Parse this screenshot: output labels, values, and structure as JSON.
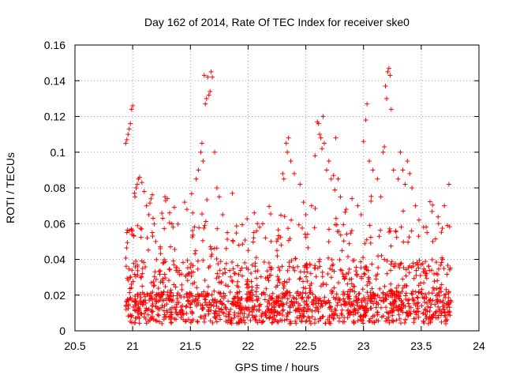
{
  "chart_data": {
    "type": "scatter",
    "title": "Day 162 of 2014, Rate Of TEC Index for receiver ske0",
    "xlabel": "GPS time / hours",
    "ylabel": "ROTI / TECUs",
    "xlim": [
      20.5,
      24
    ],
    "ylim": [
      0,
      0.16
    ],
    "xticks": [
      20.5,
      21,
      21.5,
      22,
      22.5,
      23,
      23.5,
      24
    ],
    "xtick_labels": [
      "20.5",
      "21",
      "21.5",
      "22",
      "22.5",
      "23",
      "23.5",
      "24"
    ],
    "yticks": [
      0,
      0.02,
      0.04,
      0.06,
      0.08,
      0.1,
      0.12,
      0.14,
      0.16
    ],
    "ytick_labels": [
      "0",
      "0.02",
      "0.04",
      "0.06",
      "0.08",
      "0.1",
      "0.12",
      "0.14",
      "0.16"
    ],
    "grid": true,
    "marker": "plus",
    "color": "#ff0000",
    "series": [
      {
        "name": "ROTI",
        "points": [
          [
            20.94,
            0.105
          ],
          [
            20.95,
            0.107
          ],
          [
            20.96,
            0.11
          ],
          [
            20.97,
            0.113
          ],
          [
            20.98,
            0.116
          ],
          [
            20.99,
            0.124
          ],
          [
            21.0,
            0.126
          ],
          [
            20.95,
            0.055
          ],
          [
            20.97,
            0.056
          ],
          [
            20.99,
            0.057
          ],
          [
            21.02,
            0.075
          ],
          [
            21.03,
            0.08
          ],
          [
            21.04,
            0.082
          ],
          [
            21.05,
            0.085
          ],
          [
            21.06,
            0.086
          ],
          [
            21.08,
            0.083
          ],
          [
            21.1,
            0.078
          ],
          [
            21.12,
            0.07
          ],
          [
            21.14,
            0.065
          ],
          [
            21.17,
            0.055
          ],
          [
            21.2,
            0.05
          ],
          [
            21.24,
            0.046
          ],
          [
            21.26,
            0.063
          ],
          [
            21.28,
            0.075
          ],
          [
            21.3,
            0.074
          ],
          [
            21.32,
            0.066
          ],
          [
            21.35,
            0.058
          ],
          [
            21.45,
            0.072
          ],
          [
            21.47,
            0.068
          ],
          [
            21.52,
            0.066
          ],
          [
            21.55,
            0.085
          ],
          [
            21.57,
            0.09
          ],
          [
            21.59,
            0.1
          ],
          [
            21.6,
            0.105
          ],
          [
            21.61,
            0.095
          ],
          [
            21.63,
            0.127
          ],
          [
            21.64,
            0.13
          ],
          [
            21.62,
            0.143
          ],
          [
            21.65,
            0.142
          ],
          [
            21.66,
            0.132
          ],
          [
            21.67,
            0.134
          ],
          [
            21.68,
            0.145
          ],
          [
            21.69,
            0.142
          ],
          [
            21.71,
            0.1
          ],
          [
            21.73,
            0.08
          ],
          [
            21.75,
            0.075
          ],
          [
            21.78,
            0.065
          ],
          [
            21.82,
            0.055
          ],
          [
            21.87,
            0.05
          ],
          [
            21.92,
            0.048
          ],
          [
            22.0,
            0.045
          ],
          [
            22.05,
            0.055
          ],
          [
            22.08,
            0.06
          ],
          [
            22.1,
            0.058
          ],
          [
            22.15,
            0.052
          ],
          [
            22.2,
            0.05
          ],
          [
            22.25,
            0.045
          ],
          [
            22.3,
            0.088
          ],
          [
            22.31,
            0.085
          ],
          [
            22.33,
            0.105
          ],
          [
            22.34,
            0.1
          ],
          [
            22.35,
            0.108
          ],
          [
            22.37,
            0.095
          ],
          [
            22.4,
            0.088
          ],
          [
            22.45,
            0.082
          ],
          [
            22.48,
            0.072
          ],
          [
            22.5,
            0.065
          ],
          [
            22.55,
            0.07
          ],
          [
            22.58,
            0.098
          ],
          [
            22.6,
            0.117
          ],
          [
            22.61,
            0.116
          ],
          [
            22.62,
            0.11
          ],
          [
            22.63,
            0.108
          ],
          [
            22.64,
            0.102
          ],
          [
            22.65,
            0.12
          ],
          [
            22.66,
            0.105
          ],
          [
            22.68,
            0.09
          ],
          [
            22.7,
            0.095
          ],
          [
            22.72,
            0.085
          ],
          [
            22.74,
            0.087
          ],
          [
            22.76,
            0.108
          ],
          [
            22.78,
            0.085
          ],
          [
            22.8,
            0.075
          ],
          [
            22.85,
            0.068
          ],
          [
            22.9,
            0.074
          ],
          [
            22.95,
            0.07
          ],
          [
            22.98,
            0.065
          ],
          [
            23.0,
            0.106
          ],
          [
            23.02,
            0.118
          ],
          [
            23.03,
            0.127
          ],
          [
            23.05,
            0.095
          ],
          [
            23.08,
            0.09
          ],
          [
            23.12,
            0.085
          ],
          [
            23.15,
            0.075
          ],
          [
            23.17,
            0.1
          ],
          [
            23.18,
            0.103
          ],
          [
            23.2,
            0.13
          ],
          [
            23.19,
            0.137
          ],
          [
            23.21,
            0.145
          ],
          [
            23.22,
            0.147
          ],
          [
            23.23,
            0.143
          ],
          [
            23.24,
            0.124
          ],
          [
            23.26,
            0.09
          ],
          [
            23.3,
            0.085
          ],
          [
            23.32,
            0.1
          ],
          [
            23.34,
            0.09
          ],
          [
            23.36,
            0.082
          ],
          [
            23.38,
            0.095
          ],
          [
            23.4,
            0.088
          ],
          [
            23.42,
            0.08
          ],
          [
            23.45,
            0.07
          ],
          [
            23.48,
            0.062
          ],
          [
            23.52,
            0.058
          ],
          [
            23.55,
            0.055
          ],
          [
            23.6,
            0.05
          ],
          [
            23.65,
            0.06
          ],
          [
            23.7,
            0.07
          ],
          [
            23.74,
            0.082
          ]
        ]
      }
    ]
  }
}
